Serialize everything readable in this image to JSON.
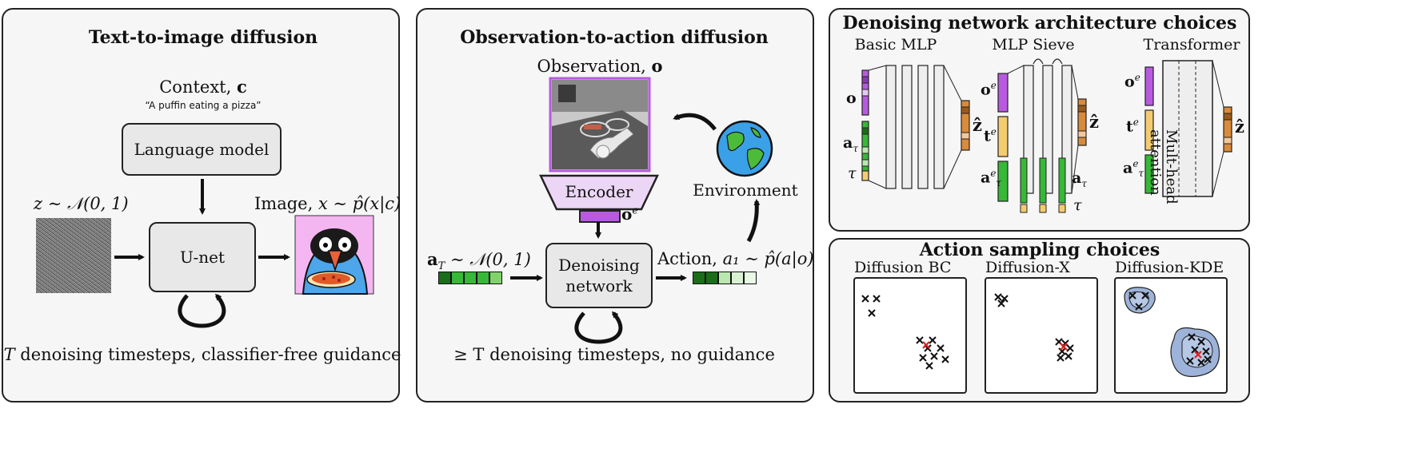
{
  "panel1": {
    "title": "Text-to-image diffusion",
    "context_label": "Context, ",
    "context_var": "c",
    "prompt": "“A puffin eating a pizza”",
    "language_model": "Language model",
    "noise_label": "z ∼ 𝒩(0, 1)",
    "image_label_prefix": "Image, ",
    "image_label": "x ∼ p̂(x|c)",
    "unet": "U-net",
    "caption_var": "T",
    "caption": " denoising timesteps, classifier-free guidance"
  },
  "panel2": {
    "title": "Observation-to-action diffusion",
    "observation_label": "Observation, ",
    "observation_var": "o",
    "encoder": "Encoder",
    "obs_embed": "o",
    "obs_embed_sup": "e",
    "environment": "Environment",
    "noise_action": "a",
    "noise_action_sub": "T",
    "noise_dist": " ∼ 𝒩(0, 1)",
    "denoising_network_line1": "Denoising",
    "denoising_network_line2": "network",
    "action_label_prefix": "Action, ",
    "action_label": "a₁ ∼ p̂(a|o)",
    "caption": "≥ T denoising timesteps, no guidance"
  },
  "panel3": {
    "title": "Denoising network architecture choices",
    "arch": [
      {
        "name": "Basic MLP"
      },
      {
        "name": "MLP Sieve"
      },
      {
        "name": "Transformer"
      }
    ],
    "attention_line1": "Mult-head",
    "attention_line2": "attention",
    "sym_o": "o",
    "sym_oe": "o",
    "sym_e": "e",
    "sym_a_tau": "a",
    "sym_tau": "τ",
    "sym_te": "t",
    "sym_z_hat": "ẑ"
  },
  "panel4": {
    "title": "Action sampling choices",
    "methods": [
      {
        "name": "Diffusion BC"
      },
      {
        "name": "Diffusion-X"
      },
      {
        "name": "Diffusion-KDE"
      }
    ]
  },
  "colors": {
    "panel_bg": "#f6f6f6",
    "box_bg": "#e8e8e8",
    "green_dark": "#1a6e1a",
    "green_mid": "#37b837",
    "green_light": "#b9e8b0",
    "purple": "#b85ae0",
    "orange": "#d98b3c",
    "yellow": "#f4cc70",
    "kde_blue": "#9db3d9",
    "red_cross": "#e02020"
  },
  "icons": [
    "noise-image",
    "puffin-pizza-image",
    "robot-kitchen-image",
    "globe-icon",
    "loop-arrow-icon"
  ]
}
